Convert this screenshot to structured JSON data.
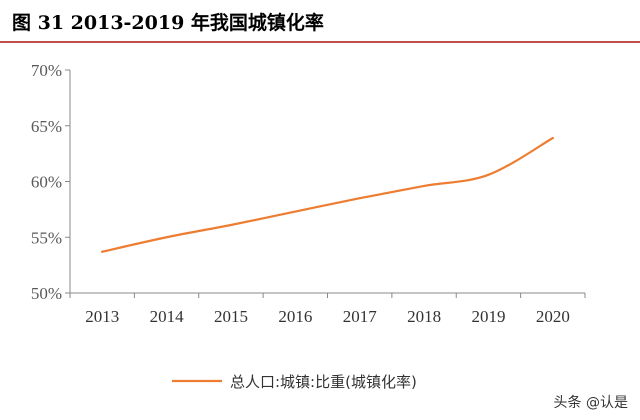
{
  "figure": {
    "title": "图 31 2013-2019 年我国城镇化率",
    "rule_color": "#c0504d"
  },
  "watermark": "头条 @认是",
  "chart_data": {
    "type": "line",
    "x": [
      "2013",
      "2014",
      "2015",
      "2016",
      "2017",
      "2018",
      "2019",
      "2020"
    ],
    "series": [
      {
        "name": "总人口:城镇:比重(城镇化率)",
        "values": [
          53.7,
          55.0,
          56.1,
          57.3,
          58.5,
          59.6,
          60.6,
          63.9
        ],
        "color": "#ed7d31"
      }
    ],
    "ylim": [
      50,
      70
    ],
    "yticks": [
      "50%",
      "55%",
      "60%",
      "65%",
      "70%"
    ],
    "ytick_values": [
      50,
      55,
      60,
      65,
      70
    ],
    "legend_position": "bottom-center",
    "grid": false,
    "title": "",
    "xlabel": "",
    "ylabel": ""
  }
}
